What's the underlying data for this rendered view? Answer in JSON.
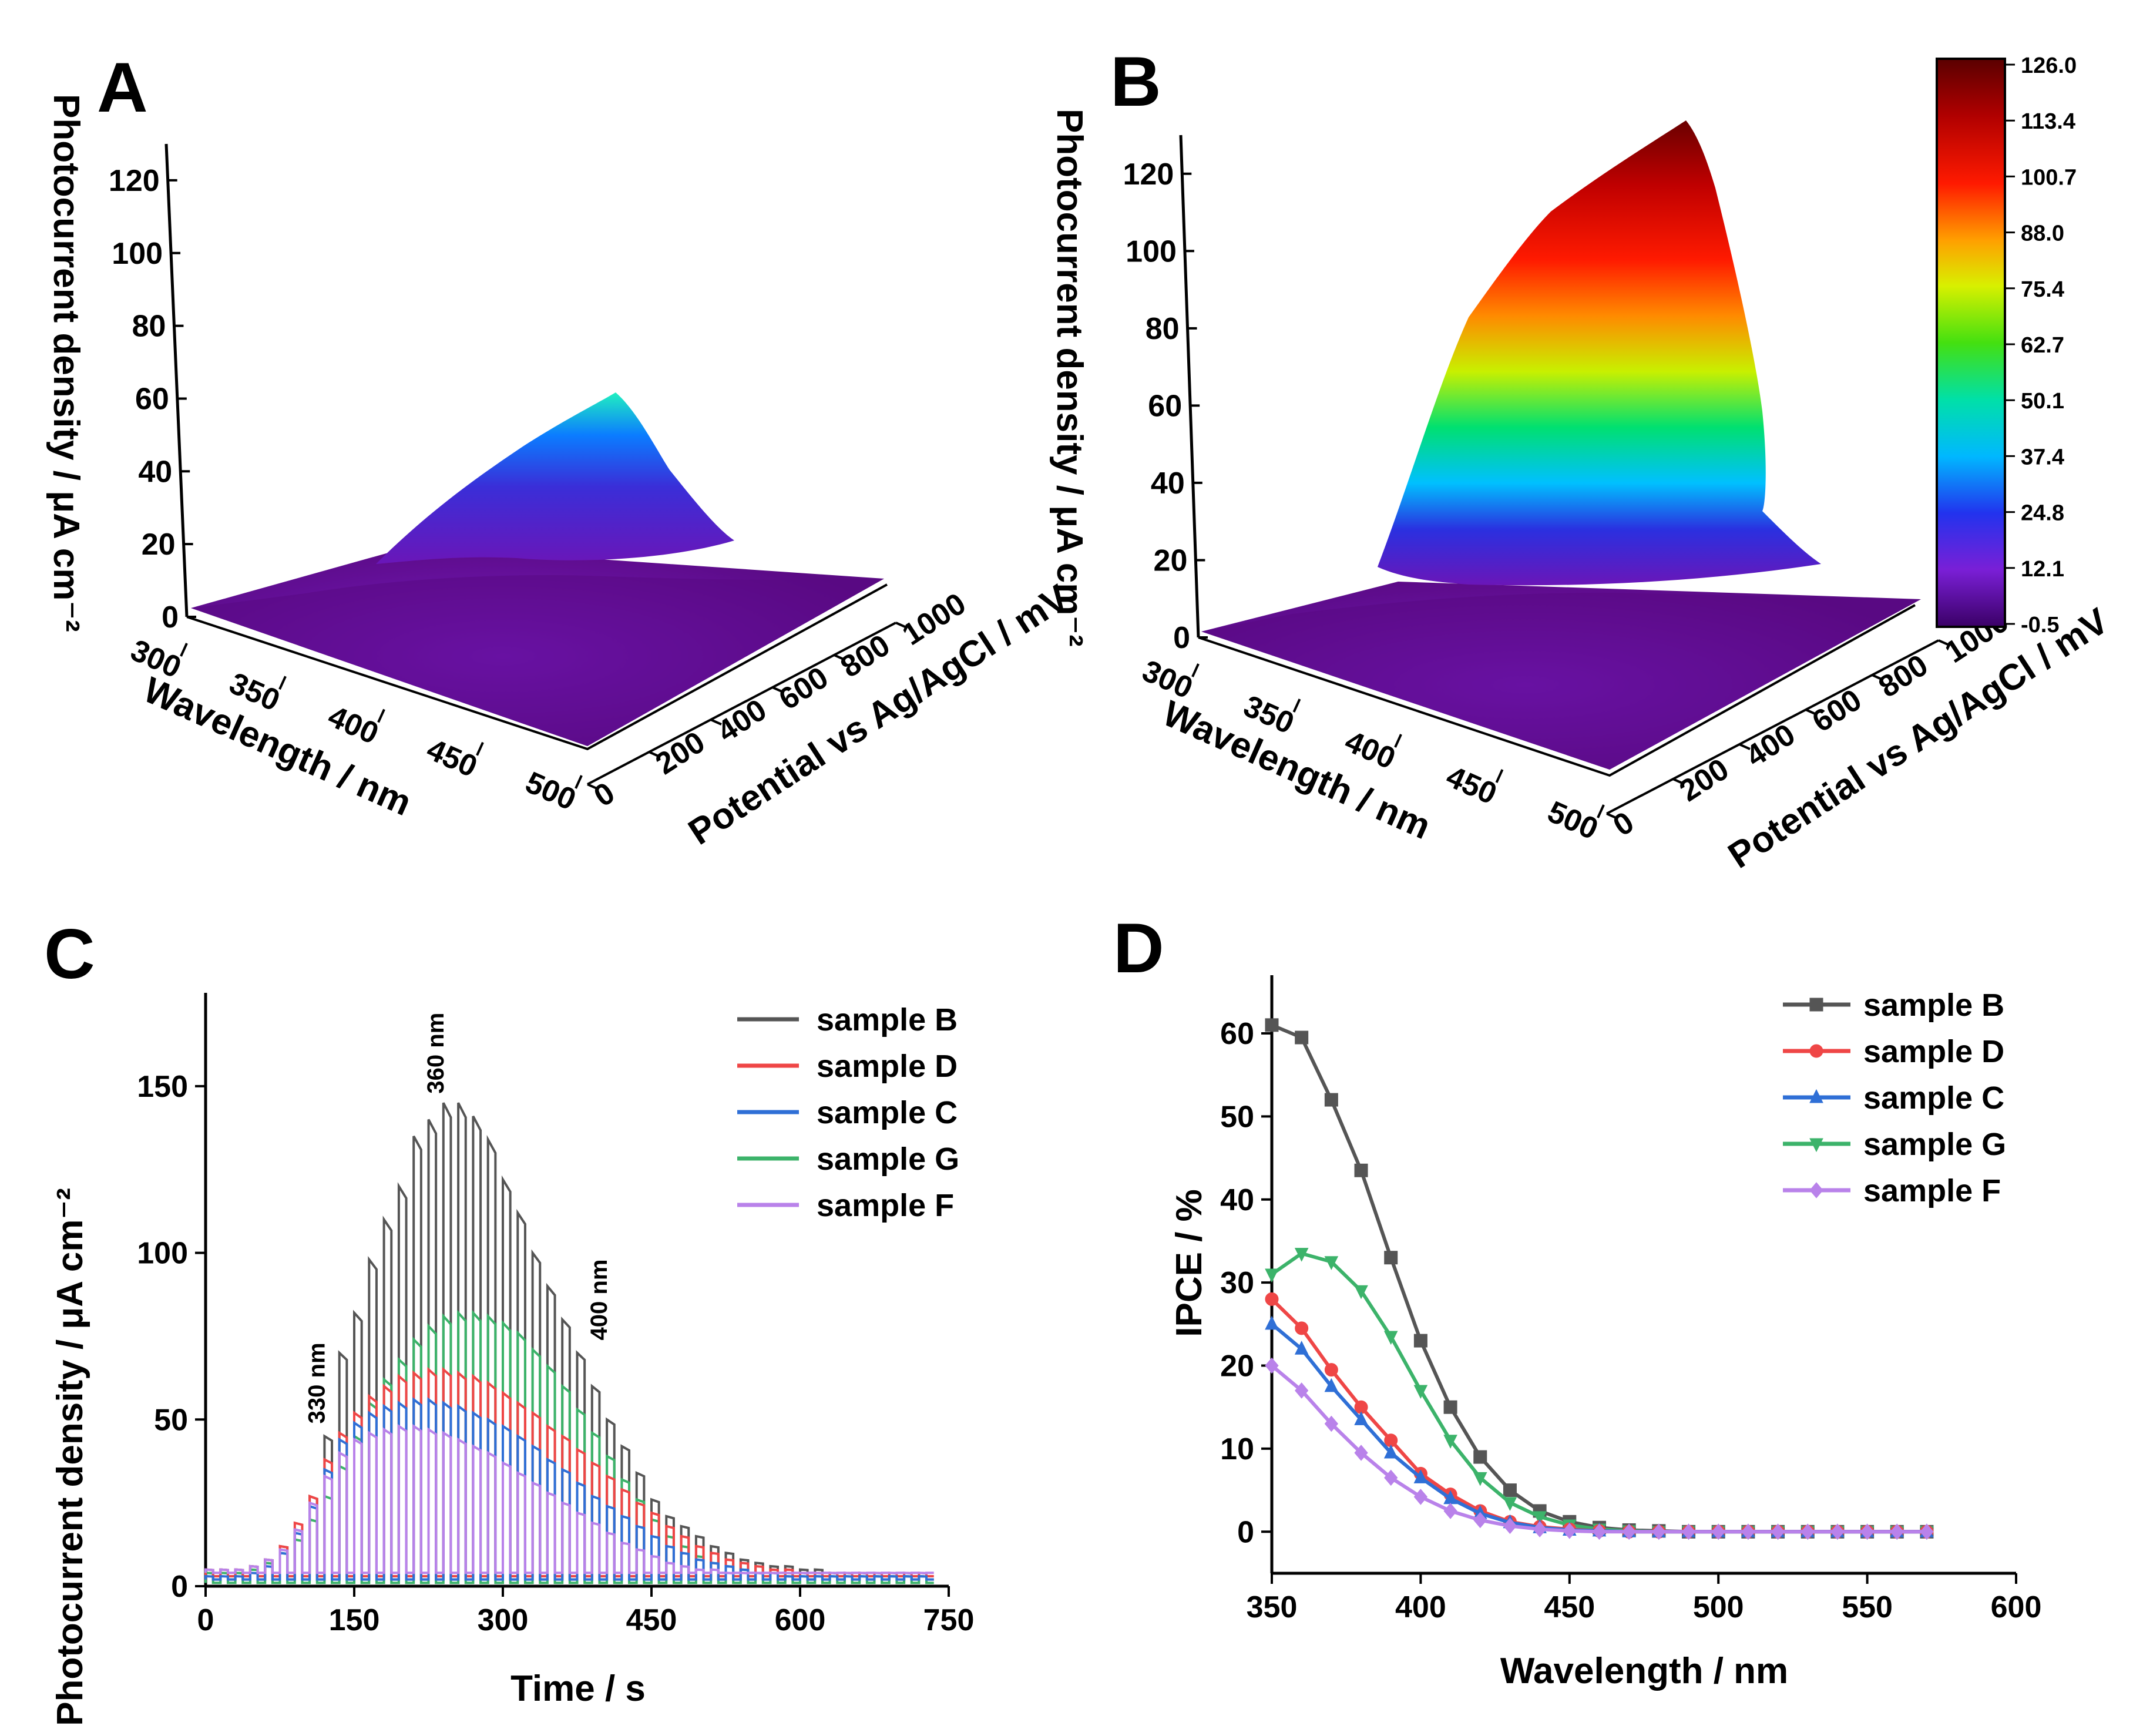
{
  "colors": {
    "sample_B": "#555555",
    "sample_D": "#ef4646",
    "sample_C": "#2f6fd6",
    "sample_G": "#3cb36a",
    "sample_F": "#b982ea",
    "surface_base": "#5c0a86"
  },
  "chart_data": [
    {
      "panel": "A",
      "type": "surface3d",
      "zlabel": "Photocurrent density / μA cm⁻²",
      "xlabel": "Wavelength / nm",
      "ylabel": "Potential vs Ag/AgCl / mV",
      "zticks": [
        "0",
        "20",
        "40",
        "60",
        "80",
        "100",
        "120"
      ],
      "xticks": [
        "300",
        "350",
        "400",
        "450",
        "500"
      ],
      "yticks": [
        "0",
        "200",
        "400",
        "600",
        "800",
        "1000"
      ],
      "zlim": [
        0,
        130
      ],
      "xlim": [
        300,
        500
      ],
      "ylim": [
        0,
        1000
      ],
      "peak": {
        "wavelength": 360,
        "potential": 1000,
        "value": 57
      }
    },
    {
      "panel": "B",
      "type": "surface3d",
      "zlabel": "Photocurrent density / μA cm⁻²",
      "xlabel": "Wavelength / nm",
      "ylabel": "Potential vs Ag/AgCl / mV",
      "zticks": [
        "0",
        "20",
        "40",
        "60",
        "80",
        "100",
        "120"
      ],
      "xticks": [
        "300",
        "350",
        "400",
        "450",
        "500"
      ],
      "yticks": [
        "0",
        "200",
        "400",
        "600",
        "800",
        "1000"
      ],
      "zlim": [
        0,
        130
      ],
      "xlim": [
        300,
        500
      ],
      "ylim": [
        0,
        1000
      ],
      "peak": {
        "wavelength": 360,
        "potential": 1000,
        "value": 126
      },
      "colorbar": {
        "min": -0.5,
        "max": 126.0,
        "ticks": [
          "126.0",
          "113.4",
          "100.7",
          "88.0",
          "75.4",
          "62.7",
          "50.1",
          "37.4",
          "24.8",
          "12.1",
          "-0.5"
        ]
      }
    },
    {
      "panel": "C",
      "type": "line",
      "subtype": "chopped-light transient",
      "xlabel": "Time / s",
      "ylabel": "Photocurrent density / μA cm⁻²",
      "xlim": [
        0,
        750
      ],
      "ylim": [
        0,
        178
      ],
      "xticks": [
        "0",
        "150",
        "300",
        "450",
        "600",
        "750"
      ],
      "yticks": [
        "0",
        "50",
        "100",
        "150"
      ],
      "pulse_period_s": 15,
      "pulse_start_times_s": [
        0,
        15,
        30,
        45,
        60,
        75,
        90,
        105,
        120,
        135,
        150,
        165,
        180,
        195,
        210,
        225,
        240,
        255,
        270,
        285,
        300,
        315,
        330,
        345,
        360,
        375,
        390,
        405,
        420,
        435,
        450,
        465,
        480,
        495,
        510,
        525,
        540,
        555,
        570,
        585,
        600,
        615,
        630,
        645,
        660,
        675,
        690,
        705,
        720
      ],
      "series": [
        {
          "name": "sample B",
          "dark": 2,
          "on_values": [
            5,
            5,
            5,
            6,
            8,
            12,
            17,
            27,
            45,
            70,
            82,
            98,
            110,
            120,
            135,
            140,
            145,
            145,
            141,
            134,
            122,
            112,
            100,
            90,
            80,
            70,
            60,
            50,
            42,
            34,
            26,
            21,
            18,
            15,
            12,
            10,
            8,
            7,
            6,
            6,
            5,
            5,
            4,
            4,
            4,
            3,
            3,
            3,
            3
          ]
        },
        {
          "name": "sample D",
          "dark": 3,
          "on_values": [
            5,
            5,
            5,
            6,
            8,
            12,
            19,
            27,
            38,
            46,
            52,
            57,
            60,
            63,
            64,
            65,
            65,
            64,
            63,
            61,
            58,
            55,
            52,
            48,
            45,
            41,
            37,
            33,
            29,
            25,
            22,
            18,
            15,
            12,
            10,
            8,
            7,
            6,
            5,
            5,
            4,
            4,
            4,
            4,
            4,
            4,
            4,
            4,
            4
          ]
        },
        {
          "name": "sample C",
          "dark": 2,
          "on_values": [
            3,
            3,
            3,
            4,
            6,
            10,
            16,
            24,
            35,
            44,
            49,
            52,
            54,
            55,
            56,
            56,
            55,
            54,
            52,
            50,
            48,
            45,
            42,
            38,
            35,
            31,
            27,
            24,
            21,
            18,
            15,
            12,
            10,
            8,
            7,
            6,
            5,
            4,
            4,
            3,
            3,
            3,
            3,
            3,
            3,
            3,
            3,
            3,
            3
          ]
        },
        {
          "name": "sample G",
          "dark": 1,
          "on_values": [
            4,
            4,
            4,
            5,
            7,
            10,
            14,
            20,
            27,
            36,
            45,
            55,
            62,
            68,
            74,
            78,
            81,
            82,
            82,
            81,
            79,
            76,
            71,
            66,
            60,
            53,
            46,
            39,
            32,
            26,
            20,
            15,
            12,
            9,
            7,
            6,
            5,
            4,
            4,
            3,
            3,
            3,
            3,
            3,
            3,
            3,
            3,
            3,
            3
          ]
        },
        {
          "name": "sample F",
          "dark": 4,
          "on_values": [
            5,
            5,
            5,
            6,
            8,
            11,
            17,
            25,
            33,
            40,
            44,
            46,
            47,
            48,
            48,
            47,
            46,
            44,
            42,
            40,
            37,
            34,
            31,
            28,
            25,
            22,
            19,
            16,
            13,
            11,
            9,
            7,
            6,
            5,
            5,
            4,
            4,
            4,
            4,
            4,
            4,
            4,
            4,
            4,
            4,
            4,
            4,
            4,
            4
          ]
        }
      ],
      "annotations": [
        {
          "text": "330 nm",
          "x": 120,
          "y": 47
        },
        {
          "text": "360 nm",
          "x": 240,
          "y": 146
        },
        {
          "text": "400 nm",
          "x": 405,
          "y": 72
        }
      ],
      "legend": "top-right"
    },
    {
      "panel": "D",
      "type": "line",
      "xlabel": "Wavelength / nm",
      "ylabel": "IPCE / %",
      "xlim": [
        350,
        600
      ],
      "ylim": [
        -5,
        67
      ],
      "xticks": [
        "350",
        "400",
        "450",
        "500",
        "550",
        "600"
      ],
      "yticks": [
        "0",
        "10",
        "20",
        "30",
        "40",
        "50",
        "60"
      ],
      "x": [
        350,
        360,
        370,
        380,
        390,
        400,
        410,
        420,
        430,
        440,
        450,
        460,
        470,
        480,
        490,
        500,
        510,
        520,
        530,
        540,
        550,
        560,
        570
      ],
      "series": [
        {
          "name": "sample B",
          "marker": "square",
          "values": [
            61,
            59.5,
            52,
            43.5,
            33,
            23,
            15,
            9,
            5,
            2.5,
            1.2,
            0.5,
            0.2,
            0.1,
            0,
            0,
            0,
            0,
            0,
            0,
            0,
            0,
            0
          ]
        },
        {
          "name": "sample D",
          "marker": "circle",
          "values": [
            28,
            24.5,
            19.5,
            15,
            11,
            7,
            4.5,
            2.5,
            1.2,
            0.6,
            0.3,
            0.1,
            0,
            0,
            0,
            0,
            0,
            0,
            0,
            0,
            0,
            0,
            0
          ]
        },
        {
          "name": "sample C",
          "marker": "triangle-up",
          "values": [
            25,
            22,
            17.5,
            13.5,
            9.5,
            6.5,
            4,
            2.2,
            1.1,
            0.5,
            0.2,
            0.1,
            0,
            0,
            0,
            0,
            0,
            0,
            0,
            0,
            0,
            0,
            0
          ]
        },
        {
          "name": "sample G",
          "marker": "triangle-down",
          "values": [
            31,
            33.5,
            32.5,
            29,
            23.5,
            17,
            11,
            6.5,
            3.5,
            1.8,
            0.8,
            0.3,
            0.1,
            0,
            0,
            0,
            0,
            0,
            0,
            0,
            0,
            0,
            0
          ]
        },
        {
          "name": "sample F",
          "marker": "diamond",
          "values": [
            20,
            17,
            13,
            9.5,
            6.5,
            4.2,
            2.5,
            1.4,
            0.7,
            0.3,
            0.1,
            0,
            0,
            0,
            0,
            0,
            0,
            0,
            0,
            0,
            0,
            0,
            0
          ]
        }
      ],
      "legend": "top-right"
    }
  ]
}
